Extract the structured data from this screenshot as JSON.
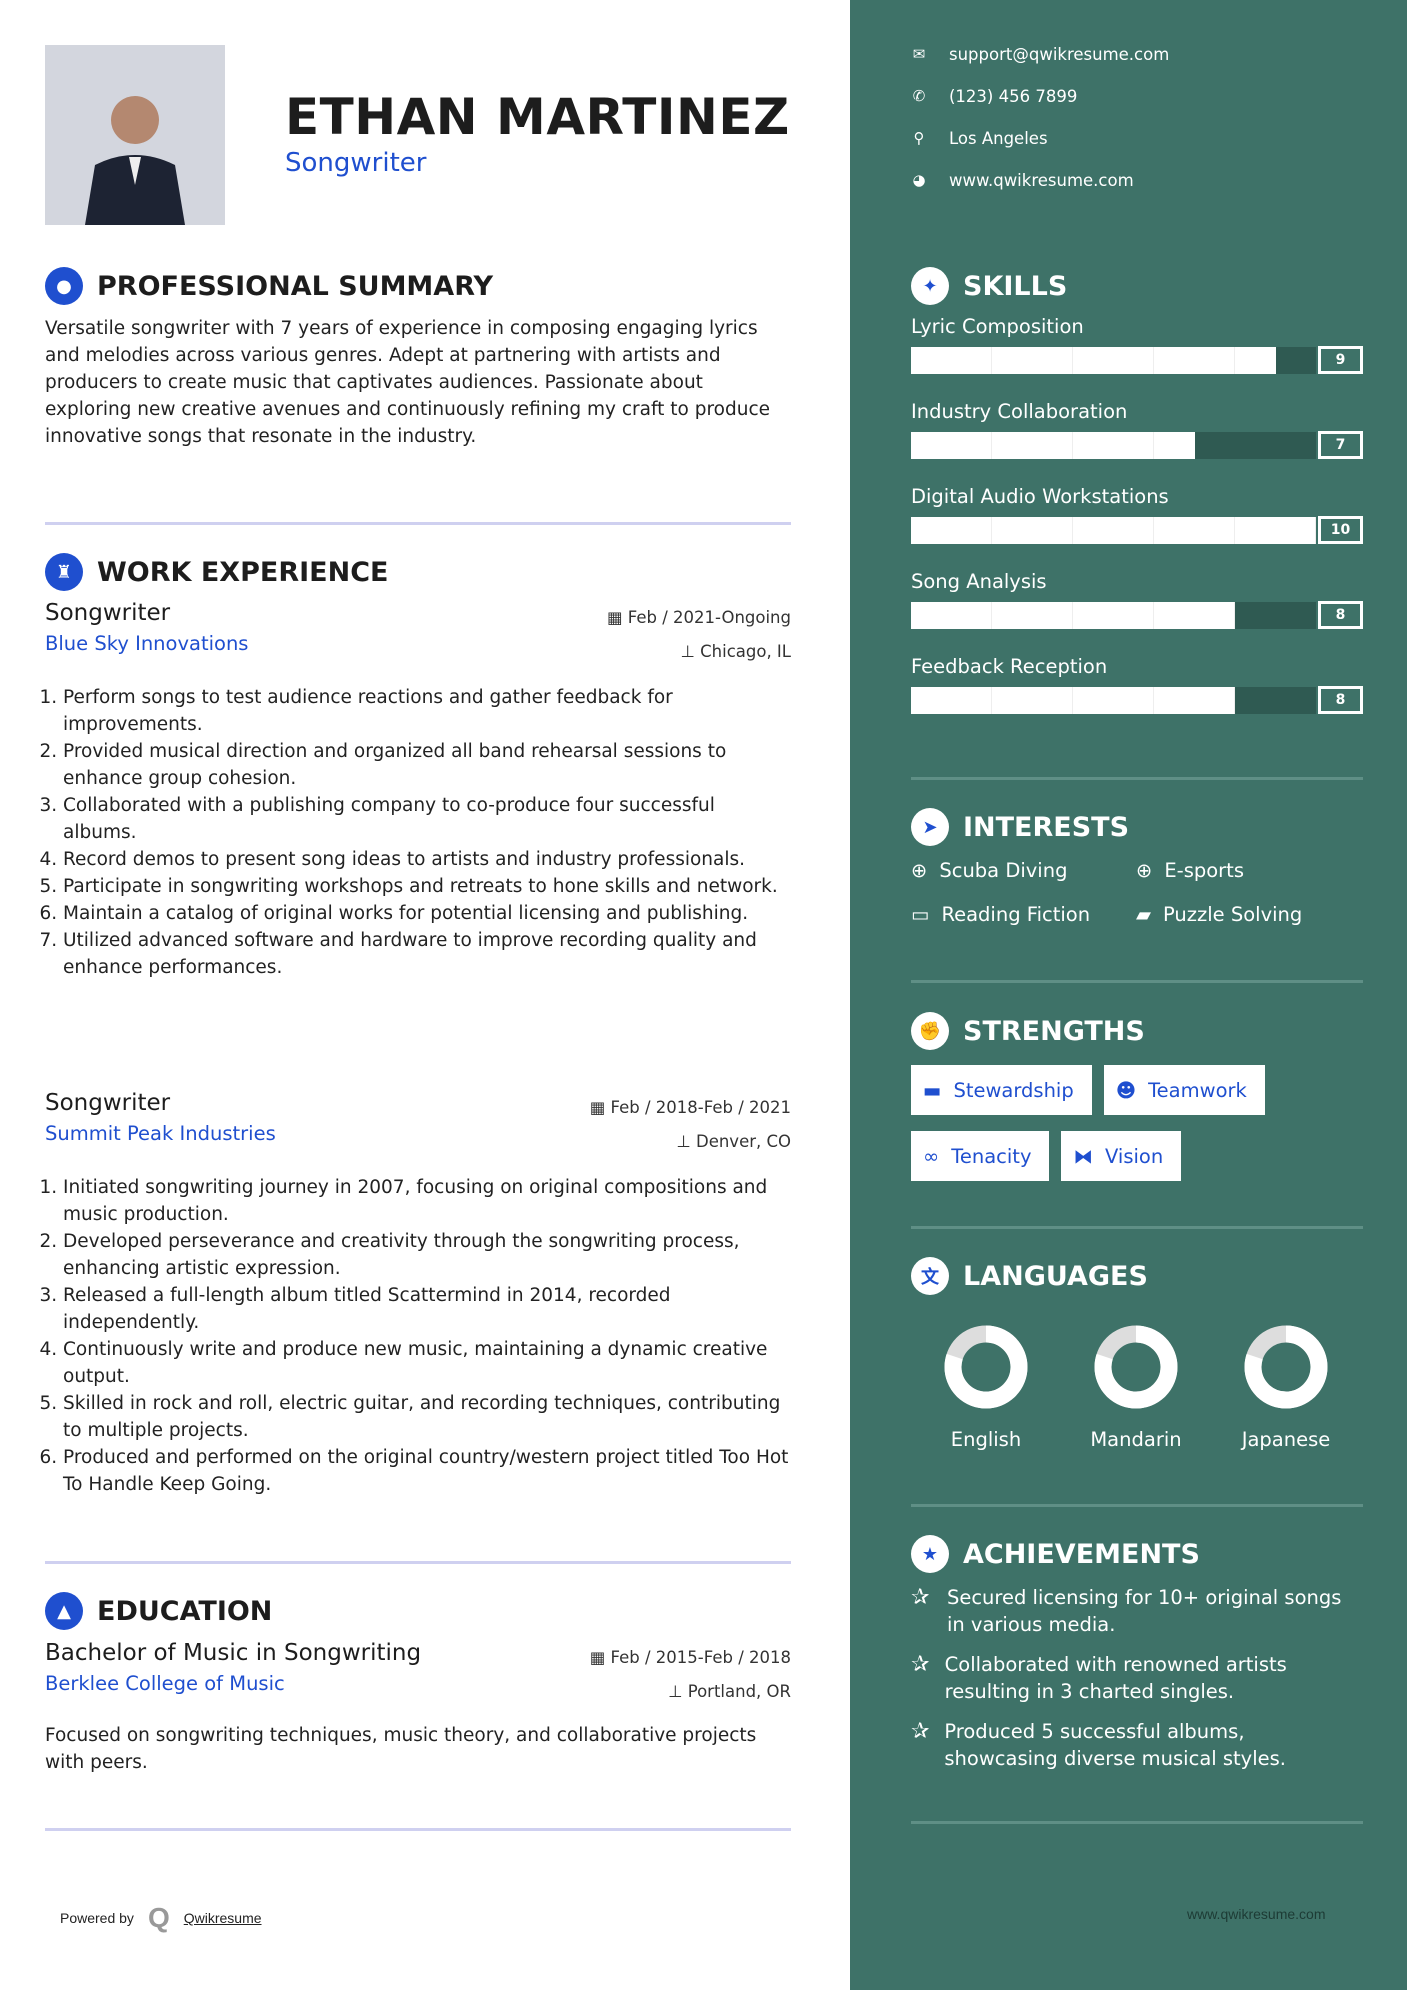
{
  "header": {
    "name": "ETHAN MARTINEZ",
    "role": "Songwriter"
  },
  "summary": {
    "title": "PROFESSIONAL SUMMARY",
    "text": "Versatile songwriter with 7 years of experience in composing engaging lyrics and melodies across various genres. Adept at partnering with artists and producers to create music that captivates audiences. Passionate about exploring new creative avenues and continuously refining my craft to produce innovative songs that resonate in the industry."
  },
  "work": {
    "title": "WORK EXPERIENCE",
    "jobs": [
      {
        "title": "Songwriter",
        "company": "Blue Sky Innovations",
        "date": "Feb / 2021-Ongoing",
        "location": "Chicago, IL",
        "items": [
          "Perform songs to test audience reactions and gather feedback for improvements.",
          "Provided musical direction and organized all band rehearsal sessions to enhance group cohesion.",
          "Collaborated with a publishing company to co-produce four successful albums.",
          "Record demos to present song ideas to artists and industry professionals.",
          "Participate in songwriting workshops and retreats to hone skills and network.",
          "Maintain a catalog of original works for potential licensing and publishing.",
          "Utilized advanced software and hardware to improve recording quality and enhance performances."
        ]
      },
      {
        "title": "Songwriter",
        "company": "Summit Peak Industries",
        "date": "Feb / 2018-Feb / 2021",
        "location": "Denver, CO",
        "items": [
          "Initiated songwriting journey in 2007, focusing on original compositions and music production.",
          "Developed perseverance and creativity through the songwriting process, enhancing artistic expression.",
          "Released a full-length album titled Scattermind in 2014, recorded independently.",
          "Continuously write and produce new music, maintaining a dynamic creative output.",
          "Skilled in rock and roll, electric guitar, and recording techniques, contributing to multiple projects.",
          "Produced and performed on the original country/western project titled Too Hot To Handle Keep Going."
        ]
      }
    ]
  },
  "education": {
    "title": "EDUCATION",
    "degree": "Bachelor of Music in Songwriting",
    "school": "Berklee College of Music",
    "date": "Feb / 2015-Feb / 2018",
    "location": "Portland, OR",
    "text": "Focused on songwriting techniques, music theory, and collaborative projects with peers."
  },
  "footer": {
    "powered": "Powered by",
    "brand": "Qwikresume",
    "site": "www.qwikresume.com"
  },
  "contact": [
    {
      "icon": "envelope-icon",
      "glyph": "✉",
      "text": "support@qwikresume.com"
    },
    {
      "icon": "phone-icon",
      "glyph": "✆",
      "text": "(123) 456 7899"
    },
    {
      "icon": "map-pin-icon",
      "glyph": "⚲",
      "text": "Los Angeles"
    },
    {
      "icon": "globe-icon",
      "glyph": "◕",
      "text": "www.qwikresume.com"
    }
  ],
  "skills": {
    "title": "SKILLS",
    "items": [
      {
        "label": "Lyric Composition",
        "score": 9
      },
      {
        "label": "Industry Collaboration",
        "score": 7
      },
      {
        "label": "Digital Audio Workstations",
        "score": 10
      },
      {
        "label": "Song Analysis",
        "score": 8
      },
      {
        "label": "Feedback Reception",
        "score": 8
      }
    ]
  },
  "interests": {
    "title": "INTERESTS",
    "items": [
      {
        "label": "Scuba Diving",
        "icon": "life-ring-icon",
        "glyph": "⊕"
      },
      {
        "label": "E-sports",
        "icon": "life-ring-icon",
        "glyph": "⊕"
      },
      {
        "label": "Reading Fiction",
        "icon": "gamepad-icon",
        "glyph": "▭"
      },
      {
        "label": "Puzzle Solving",
        "icon": "book-icon",
        "glyph": "▰"
      }
    ]
  },
  "strengths": {
    "title": "STRENGTHS",
    "items": [
      {
        "label": "Stewardship",
        "icon": "briefcase-icon",
        "glyph": "▬"
      },
      {
        "label": "Teamwork",
        "icon": "users-icon",
        "glyph": "☻"
      },
      {
        "label": "Tenacity",
        "icon": "link-icon",
        "glyph": "∞"
      },
      {
        "label": "Vision",
        "icon": "binoculars-icon",
        "glyph": "⧓"
      }
    ]
  },
  "languages": {
    "title": "LANGUAGES",
    "items": [
      {
        "label": "English",
        "level": 0.8
      },
      {
        "label": "Mandarin",
        "level": 0.8
      },
      {
        "label": "Japanese",
        "level": 0.8
      }
    ]
  },
  "achievements": {
    "title": "ACHIEVEMENTS",
    "items": [
      "Secured licensing for 10+ original songs in various media.",
      "Collaborated with renowned artists resulting in 3 charted singles.",
      "Produced 5 successful albums, showcasing diverse musical styles."
    ]
  },
  "colors": {
    "accent": "#1f4fcf",
    "sidebar": "#3e7268",
    "bar_track": "#2f5a52"
  }
}
